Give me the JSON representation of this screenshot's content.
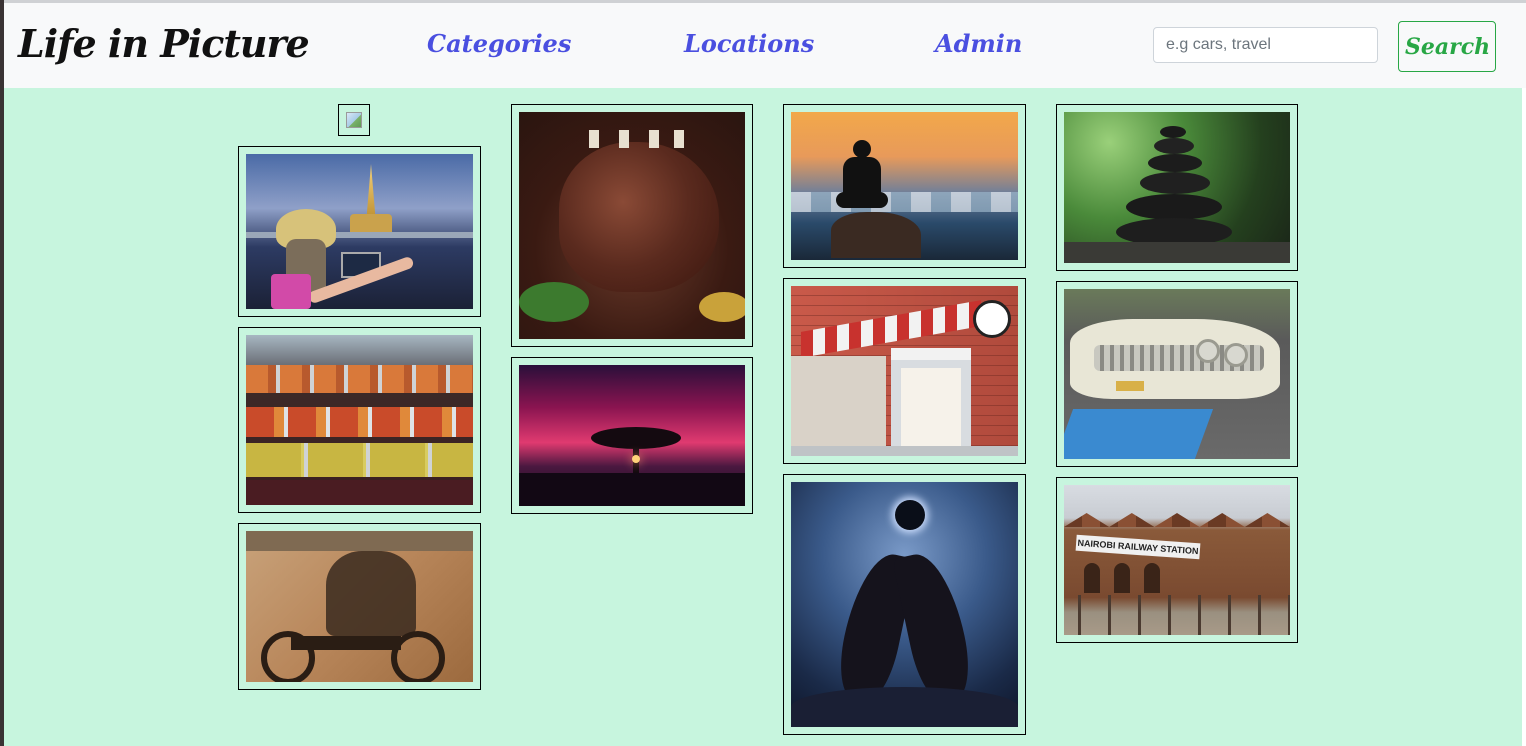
{
  "navbar": {
    "brand": "Life in Picture",
    "links": [
      {
        "label": "Categories"
      },
      {
        "label": "Locations"
      },
      {
        "label": "Admin"
      }
    ],
    "search_placeholder": "e.g cars, travel",
    "search_label": "Search"
  },
  "gallery": {
    "images": [
      {
        "name": "woman-with-laptop-at-pagoda"
      },
      {
        "name": "roast-prime-rib"
      },
      {
        "name": "yoga-silhouette-sunset-sea"
      },
      {
        "name": "stacked-zen-stones"
      },
      {
        "name": "street-food-buffet"
      },
      {
        "name": "tree-silhouette-red-sky"
      },
      {
        "name": "ice-cream-shop-storefront"
      },
      {
        "name": "vintage-white-car"
      },
      {
        "name": "motorcycle-riders-drawing"
      },
      {
        "name": "dark-winged-figure-eclipse"
      },
      {
        "name": "nairobi-railway-station",
        "sign_text": "NAIROBI RAILWAY STATION"
      }
    ]
  }
}
